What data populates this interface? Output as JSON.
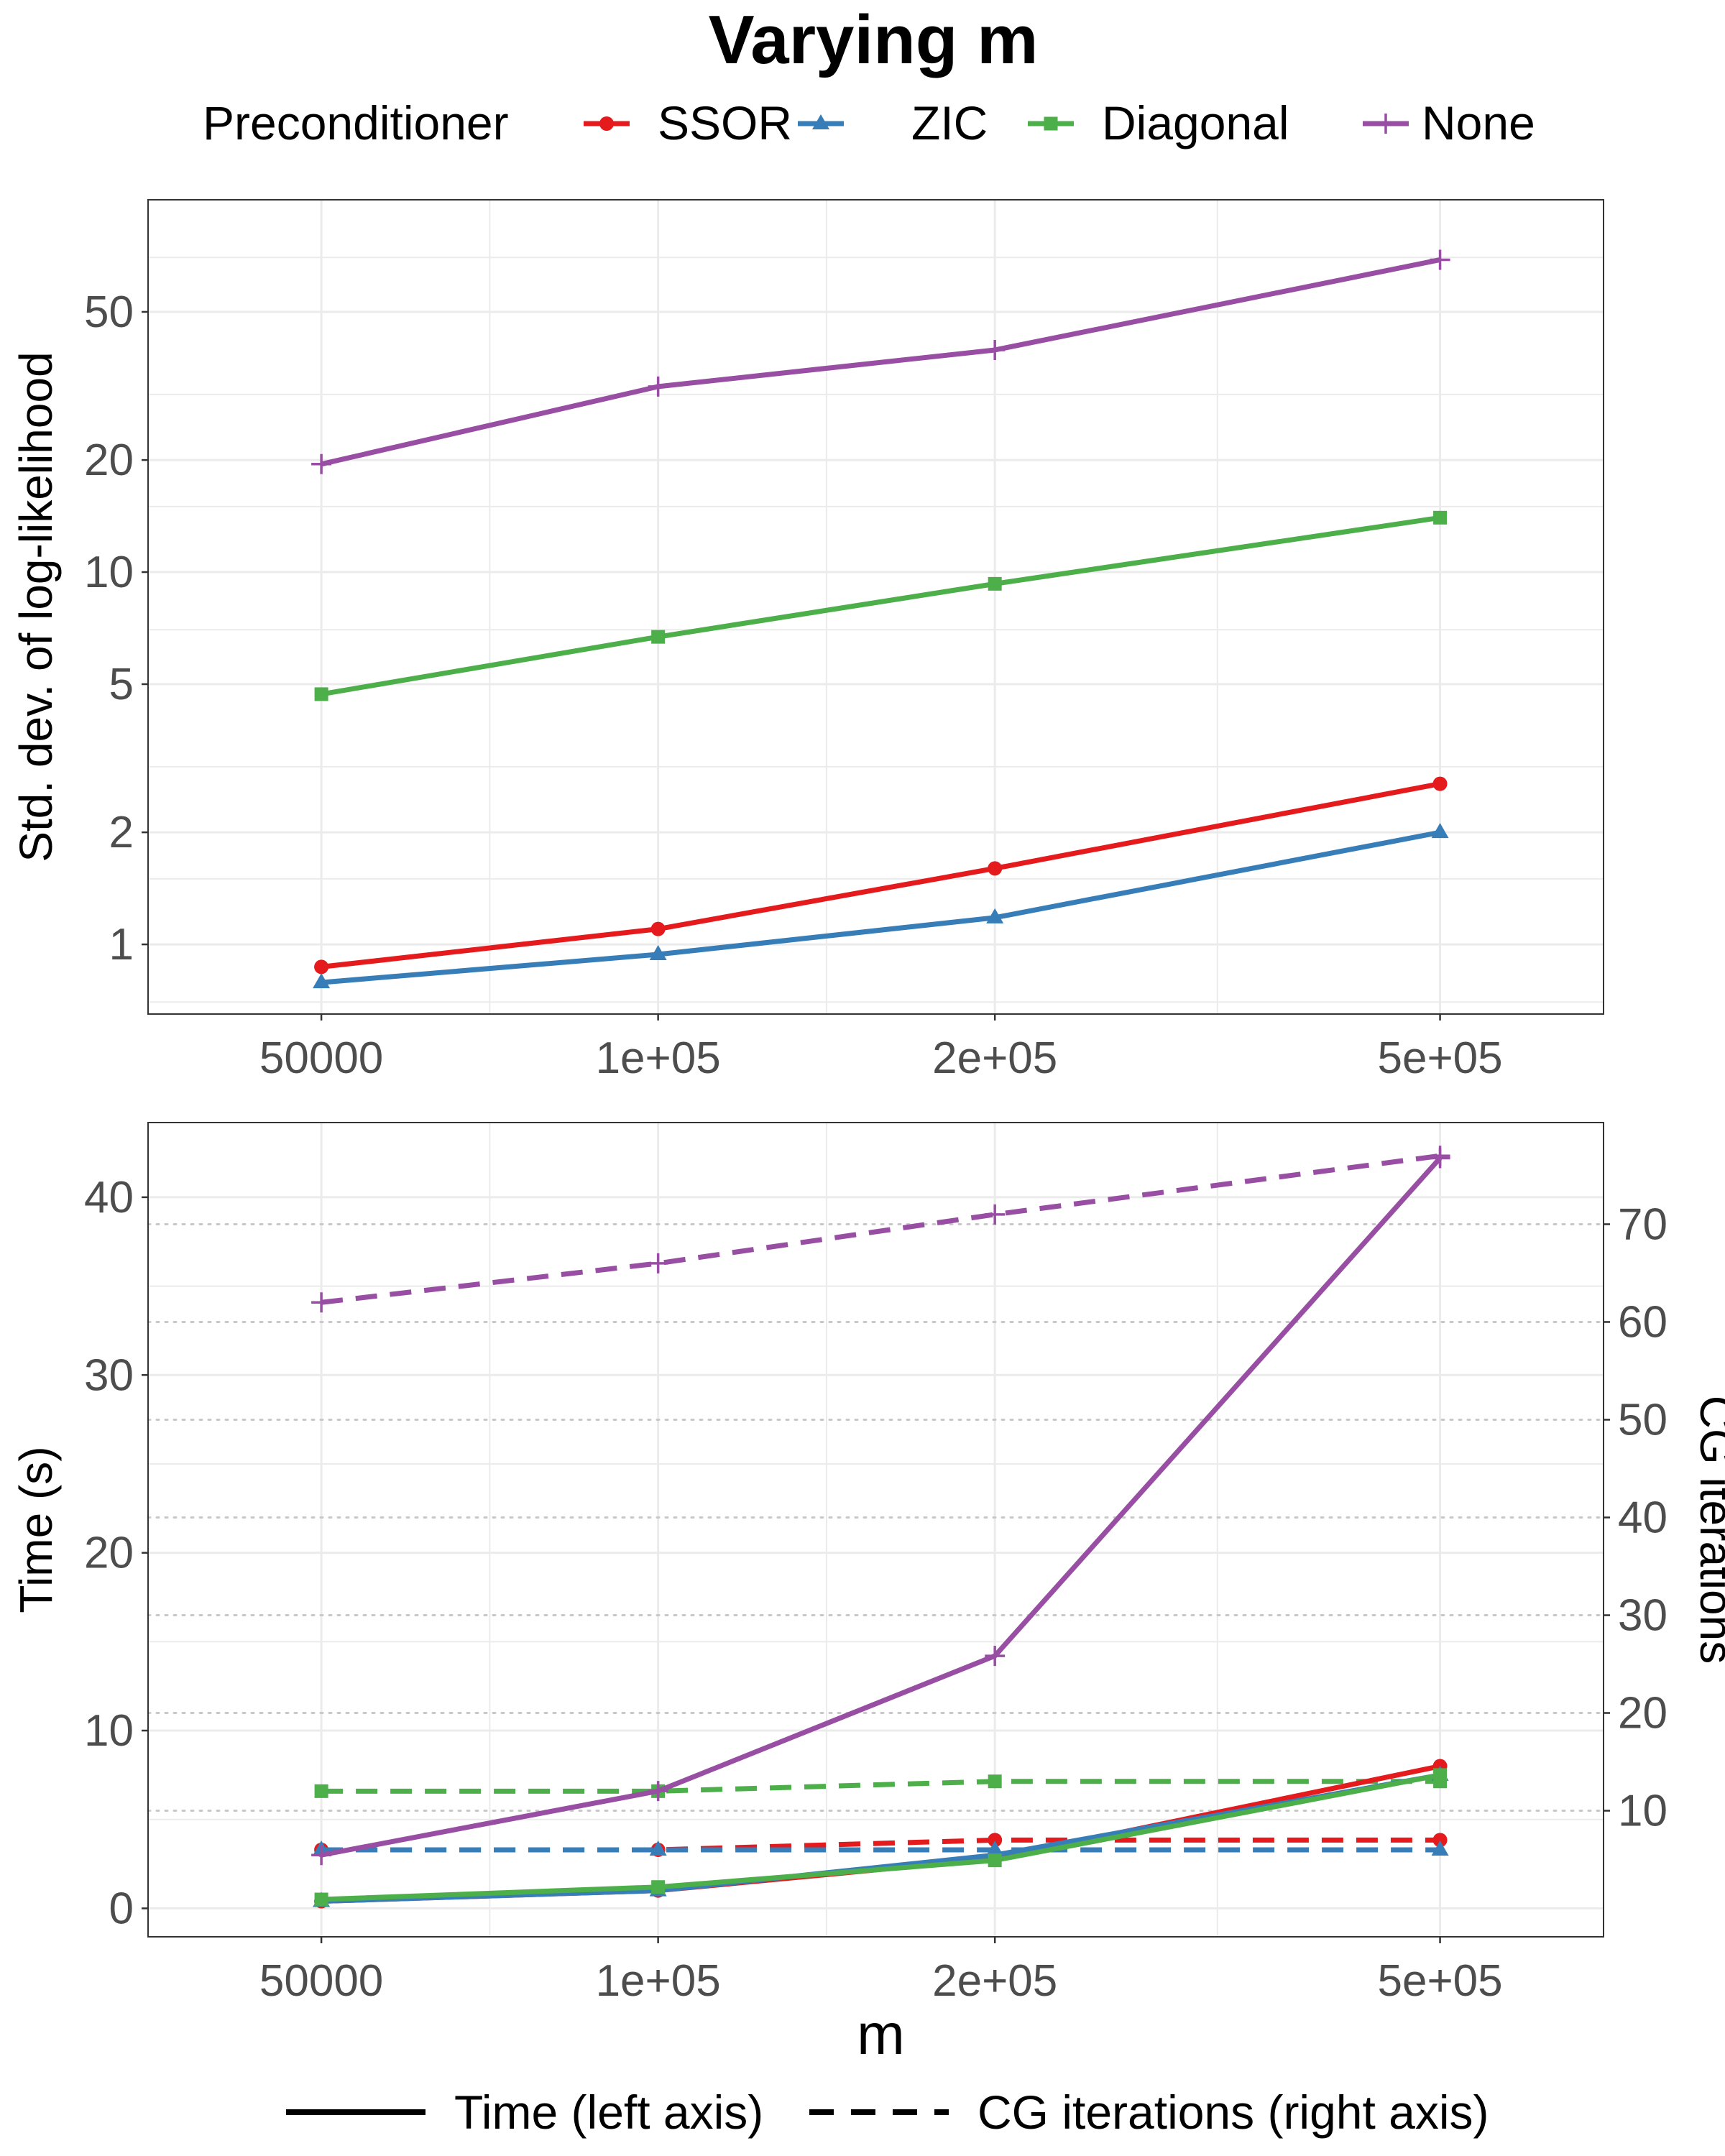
{
  "title": "Varying m",
  "legend": {
    "title": "Preconditioner",
    "entries": [
      "SSOR",
      "ZIC",
      "Diagonal",
      "None"
    ]
  },
  "line_legend": {
    "solid": "Time (left axis)",
    "dashed": "CG iterations (right axis)"
  },
  "colors": {
    "SSOR": "#e41a1c",
    "ZIC": "#377eb8",
    "Diagonal": "#4daf4a",
    "None": "#984ea3"
  },
  "chart_data": [
    {
      "type": "line",
      "panel": "top",
      "xscale": "log",
      "yscale": "log",
      "x": [
        50000,
        100000,
        200000,
        500000
      ],
      "xticklabels": [
        "50000",
        "1e+05",
        "2e+05",
        "5e+05"
      ],
      "xlim": [
        35000,
        700000
      ],
      "ylabel": "Std. dev. of log-likelihood",
      "ylim": [
        0.65,
        100
      ],
      "yticks": [
        1,
        2,
        5,
        10,
        20,
        50
      ],
      "yticklabels": [
        "1",
        "2",
        "5",
        "10",
        "20",
        "50"
      ],
      "series": [
        {
          "name": "SSOR",
          "marker": "circle",
          "values": [
            0.87,
            1.1,
            1.6,
            2.7
          ]
        },
        {
          "name": "ZIC",
          "marker": "triangle",
          "values": [
            0.79,
            0.94,
            1.18,
            2.0
          ]
        },
        {
          "name": "Diagonal",
          "marker": "square",
          "values": [
            4.7,
            6.7,
            9.3,
            14.0
          ]
        },
        {
          "name": "None",
          "marker": "plus",
          "values": [
            19.5,
            31.5,
            39.5,
            69.0
          ]
        }
      ]
    },
    {
      "type": "line",
      "panel": "bottom",
      "xscale": "log",
      "x": [
        50000,
        100000,
        200000,
        500000
      ],
      "xticklabels": [
        "50000",
        "1e+05",
        "2e+05",
        "5e+05"
      ],
      "xlim": [
        35000,
        700000
      ],
      "xlabel": "m",
      "ylabel": "Time (s)",
      "ylim": [
        -1.6,
        44.2
      ],
      "yticks": [
        0,
        10,
        20,
        30,
        40
      ],
      "yticklabels": [
        "0",
        "10",
        "20",
        "30",
        "40"
      ],
      "y2label": "CG iterations",
      "y2lim": [
        -2.9,
        80.4
      ],
      "y2ticks": [
        10,
        20,
        30,
        40,
        50,
        60,
        70
      ],
      "y2ticklabels": [
        "10",
        "20",
        "30",
        "40",
        "50",
        "60",
        "70"
      ],
      "series": [
        {
          "name": "SSOR",
          "metric": "Time",
          "axis": "left",
          "style": "solid",
          "marker": "circle",
          "values": [
            0.4,
            1.0,
            2.8,
            8.0
          ]
        },
        {
          "name": "ZIC",
          "metric": "Time",
          "axis": "left",
          "style": "solid",
          "marker": "triangle",
          "values": [
            0.4,
            1.0,
            3.0,
            7.5
          ]
        },
        {
          "name": "Diagonal",
          "metric": "Time",
          "axis": "left",
          "style": "solid",
          "marker": "square",
          "values": [
            0.5,
            1.2,
            2.7,
            7.5
          ]
        },
        {
          "name": "None",
          "metric": "Time",
          "axis": "left",
          "style": "solid",
          "marker": "plus",
          "values": [
            3.0,
            6.6,
            14.2,
            42.2
          ]
        },
        {
          "name": "SSOR",
          "metric": "CG iterations",
          "axis": "right",
          "style": "dashed",
          "marker": "circle",
          "values": [
            6,
            6,
            7,
            7
          ]
        },
        {
          "name": "ZIC",
          "metric": "CG iterations",
          "axis": "right",
          "style": "dashed",
          "marker": "triangle",
          "values": [
            6,
            6,
            6,
            6
          ]
        },
        {
          "name": "Diagonal",
          "metric": "CG iterations",
          "axis": "right",
          "style": "dashed",
          "marker": "square",
          "values": [
            12,
            12,
            13,
            13
          ]
        },
        {
          "name": "None",
          "metric": "CG iterations",
          "axis": "right",
          "style": "dashed",
          "marker": "plus",
          "values": [
            62,
            66,
            71,
            77
          ]
        }
      ]
    }
  ]
}
